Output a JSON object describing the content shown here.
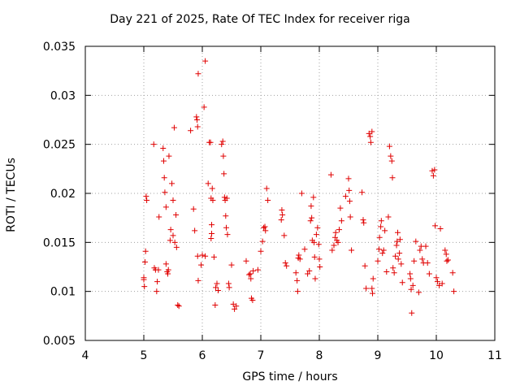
{
  "chart_data": {
    "type": "scatter",
    "title": "Day 221 of 2025, Rate Of TEC Index for receiver riga",
    "xlabel": "GPS time / hours",
    "ylabel": "ROTI / TECUs",
    "xlim": [
      4,
      11
    ],
    "ylim": [
      0.005,
      0.035
    ],
    "x_ticks": [
      4,
      5,
      6,
      7,
      8,
      9,
      10,
      11
    ],
    "x_tick_labels": [
      "4",
      "5",
      "6",
      "7",
      "8",
      "9",
      "10",
      "11"
    ],
    "y_ticks": [
      0.005,
      0.01,
      0.015,
      0.02,
      0.025,
      0.03,
      0.035
    ],
    "y_tick_labels": [
      "0.005",
      "0.01",
      "0.015",
      "0.02",
      "0.025",
      "0.03",
      "0.035"
    ],
    "grid": true,
    "marker": "+",
    "color": "#e00000",
    "points": [
      [
        5.0,
        0.0114
      ],
      [
        5.0,
        0.0112
      ],
      [
        5.01,
        0.0105
      ],
      [
        5.02,
        0.013
      ],
      [
        5.03,
        0.0141
      ],
      [
        5.04,
        0.0197
      ],
      [
        5.05,
        0.0193
      ],
      [
        5.17,
        0.025
      ],
      [
        5.18,
        0.0124
      ],
      [
        5.2,
        0.0122
      ],
      [
        5.22,
        0.01
      ],
      [
        5.23,
        0.011
      ],
      [
        5.25,
        0.0122
      ],
      [
        5.26,
        0.0176
      ],
      [
        5.33,
        0.0246
      ],
      [
        5.34,
        0.0233
      ],
      [
        5.35,
        0.0216
      ],
      [
        5.36,
        0.0201
      ],
      [
        5.38,
        0.0186
      ],
      [
        5.38,
        0.0128
      ],
      [
        5.4,
        0.012
      ],
      [
        5.41,
        0.0118
      ],
      [
        5.42,
        0.0122
      ],
      [
        5.43,
        0.0238
      ],
      [
        5.45,
        0.0152
      ],
      [
        5.46,
        0.0163
      ],
      [
        5.48,
        0.021
      ],
      [
        5.5,
        0.0193
      ],
      [
        5.5,
        0.0157
      ],
      [
        5.52,
        0.0267
      ],
      [
        5.53,
        0.015
      ],
      [
        5.55,
        0.0178
      ],
      [
        5.56,
        0.0145
      ],
      [
        5.58,
        0.0086
      ],
      [
        5.6,
        0.0085
      ],
      [
        5.8,
        0.0264
      ],
      [
        5.85,
        0.0184
      ],
      [
        5.87,
        0.0162
      ],
      [
        5.9,
        0.0278
      ],
      [
        5.91,
        0.0275
      ],
      [
        5.92,
        0.0268
      ],
      [
        5.93,
        0.0322
      ],
      [
        5.92,
        0.0136
      ],
      [
        5.93,
        0.0111
      ],
      [
        5.98,
        0.0127
      ],
      [
        6.0,
        0.0137
      ],
      [
        6.03,
        0.0288
      ],
      [
        6.05,
        0.0335
      ],
      [
        6.05,
        0.0136
      ],
      [
        6.1,
        0.021
      ],
      [
        6.12,
        0.0252
      ],
      [
        6.14,
        0.0252
      ],
      [
        6.15,
        0.0195
      ],
      [
        6.16,
        0.0168
      ],
      [
        6.17,
        0.0205
      ],
      [
        6.15,
        0.0154
      ],
      [
        6.16,
        0.0159
      ],
      [
        6.18,
        0.0193
      ],
      [
        6.2,
        0.0135
      ],
      [
        6.22,
        0.0086
      ],
      [
        6.23,
        0.0104
      ],
      [
        6.25,
        0.0108
      ],
      [
        6.27,
        0.0101
      ],
      [
        6.33,
        0.025
      ],
      [
        6.35,
        0.0253
      ],
      [
        6.36,
        0.0238
      ],
      [
        6.37,
        0.022
      ],
      [
        6.38,
        0.0196
      ],
      [
        6.39,
        0.0193
      ],
      [
        6.4,
        0.0177
      ],
      [
        6.41,
        0.0165
      ],
      [
        6.42,
        0.0195
      ],
      [
        6.43,
        0.0158
      ],
      [
        6.45,
        0.0108
      ],
      [
        6.46,
        0.0104
      ],
      [
        6.5,
        0.0127
      ],
      [
        6.53,
        0.0087
      ],
      [
        6.55,
        0.0082
      ],
      [
        6.58,
        0.0085
      ],
      [
        6.75,
        0.0131
      ],
      [
        6.8,
        0.0117
      ],
      [
        6.82,
        0.0118
      ],
      [
        6.83,
        0.0113
      ],
      [
        6.84,
        0.0093
      ],
      [
        6.86,
        0.0091
      ],
      [
        6.87,
        0.0121
      ],
      [
        6.95,
        0.0122
      ],
      [
        7.0,
        0.0141
      ],
      [
        7.03,
        0.0151
      ],
      [
        7.05,
        0.0165
      ],
      [
        7.07,
        0.0166
      ],
      [
        7.1,
        0.0205
      ],
      [
        7.12,
        0.0193
      ],
      [
        7.08,
        0.0162
      ],
      [
        7.35,
        0.0173
      ],
      [
        7.36,
        0.0183
      ],
      [
        7.37,
        0.0178
      ],
      [
        7.4,
        0.0157
      ],
      [
        7.42,
        0.0129
      ],
      [
        7.44,
        0.0126
      ],
      [
        7.6,
        0.0119
      ],
      [
        7.62,
        0.0111
      ],
      [
        7.63,
        0.01
      ],
      [
        7.64,
        0.0134
      ],
      [
        7.65,
        0.0137
      ],
      [
        7.67,
        0.0133
      ],
      [
        7.7,
        0.02
      ],
      [
        7.75,
        0.0143
      ],
      [
        7.8,
        0.0118
      ],
      [
        7.83,
        0.0121
      ],
      [
        7.85,
        0.0172
      ],
      [
        7.86,
        0.0187
      ],
      [
        7.87,
        0.0175
      ],
      [
        7.88,
        0.0152
      ],
      [
        7.9,
        0.0196
      ],
      [
        7.91,
        0.015
      ],
      [
        7.92,
        0.0135
      ],
      [
        7.93,
        0.0113
      ],
      [
        7.95,
        0.0158
      ],
      [
        7.97,
        0.0165
      ],
      [
        7.99,
        0.0148
      ],
      [
        8.0,
        0.0133
      ],
      [
        8.01,
        0.0125
      ],
      [
        8.2,
        0.0219
      ],
      [
        8.22,
        0.0142
      ],
      [
        8.25,
        0.0147
      ],
      [
        8.27,
        0.0155
      ],
      [
        8.28,
        0.016
      ],
      [
        8.3,
        0.0152
      ],
      [
        8.32,
        0.015
      ],
      [
        8.34,
        0.0163
      ],
      [
        8.36,
        0.0185
      ],
      [
        8.38,
        0.0172
      ],
      [
        8.45,
        0.0197
      ],
      [
        8.5,
        0.0215
      ],
      [
        8.51,
        0.0203
      ],
      [
        8.52,
        0.0192
      ],
      [
        8.53,
        0.0176
      ],
      [
        8.55,
        0.0142
      ],
      [
        8.73,
        0.0201
      ],
      [
        8.75,
        0.0173
      ],
      [
        8.76,
        0.017
      ],
      [
        8.78,
        0.0126
      ],
      [
        8.8,
        0.0103
      ],
      [
        8.85,
        0.0261
      ],
      [
        8.87,
        0.0258
      ],
      [
        8.88,
        0.0252
      ],
      [
        8.9,
        0.0263
      ],
      [
        8.9,
        0.0103
      ],
      [
        8.91,
        0.0098
      ],
      [
        8.92,
        0.0113
      ],
      [
        9.0,
        0.0131
      ],
      [
        9.02,
        0.0143
      ],
      [
        9.03,
        0.0155
      ],
      [
        9.05,
        0.0166
      ],
      [
        9.06,
        0.0172
      ],
      [
        9.08,
        0.0139
      ],
      [
        9.1,
        0.0142
      ],
      [
        9.12,
        0.0162
      ],
      [
        9.15,
        0.012
      ],
      [
        9.18,
        0.0176
      ],
      [
        9.2,
        0.0248
      ],
      [
        9.22,
        0.0238
      ],
      [
        9.24,
        0.0233
      ],
      [
        9.25,
        0.0216
      ],
      [
        9.26,
        0.0124
      ],
      [
        9.28,
        0.0119
      ],
      [
        9.3,
        0.0136
      ],
      [
        9.32,
        0.0147
      ],
      [
        9.33,
        0.0151
      ],
      [
        9.34,
        0.016
      ],
      [
        9.35,
        0.0133
      ],
      [
        9.37,
        0.0139
      ],
      [
        9.38,
        0.0153
      ],
      [
        9.4,
        0.0128
      ],
      [
        9.42,
        0.0109
      ],
      [
        9.55,
        0.0118
      ],
      [
        9.56,
        0.0113
      ],
      [
        9.57,
        0.0102
      ],
      [
        9.58,
        0.0078
      ],
      [
        9.6,
        0.0106
      ],
      [
        9.62,
        0.0131
      ],
      [
        9.65,
        0.0151
      ],
      [
        9.7,
        0.0099
      ],
      [
        9.72,
        0.0142
      ],
      [
        9.74,
        0.0146
      ],
      [
        9.76,
        0.0133
      ],
      [
        9.78,
        0.0129
      ],
      [
        9.82,
        0.0146
      ],
      [
        9.85,
        0.0129
      ],
      [
        9.88,
        0.0118
      ],
      [
        9.93,
        0.0223
      ],
      [
        9.95,
        0.0218
      ],
      [
        9.97,
        0.0224
      ],
      [
        9.98,
        0.0167
      ],
      [
        10.0,
        0.0114
      ],
      [
        10.02,
        0.011
      ],
      [
        10.05,
        0.0106
      ],
      [
        10.07,
        0.0164
      ],
      [
        10.1,
        0.0108
      ],
      [
        10.15,
        0.0142
      ],
      [
        10.17,
        0.0138
      ],
      [
        10.18,
        0.0131
      ],
      [
        10.2,
        0.0132
      ],
      [
        10.28,
        0.0119
      ],
      [
        10.3,
        0.01
      ]
    ]
  }
}
